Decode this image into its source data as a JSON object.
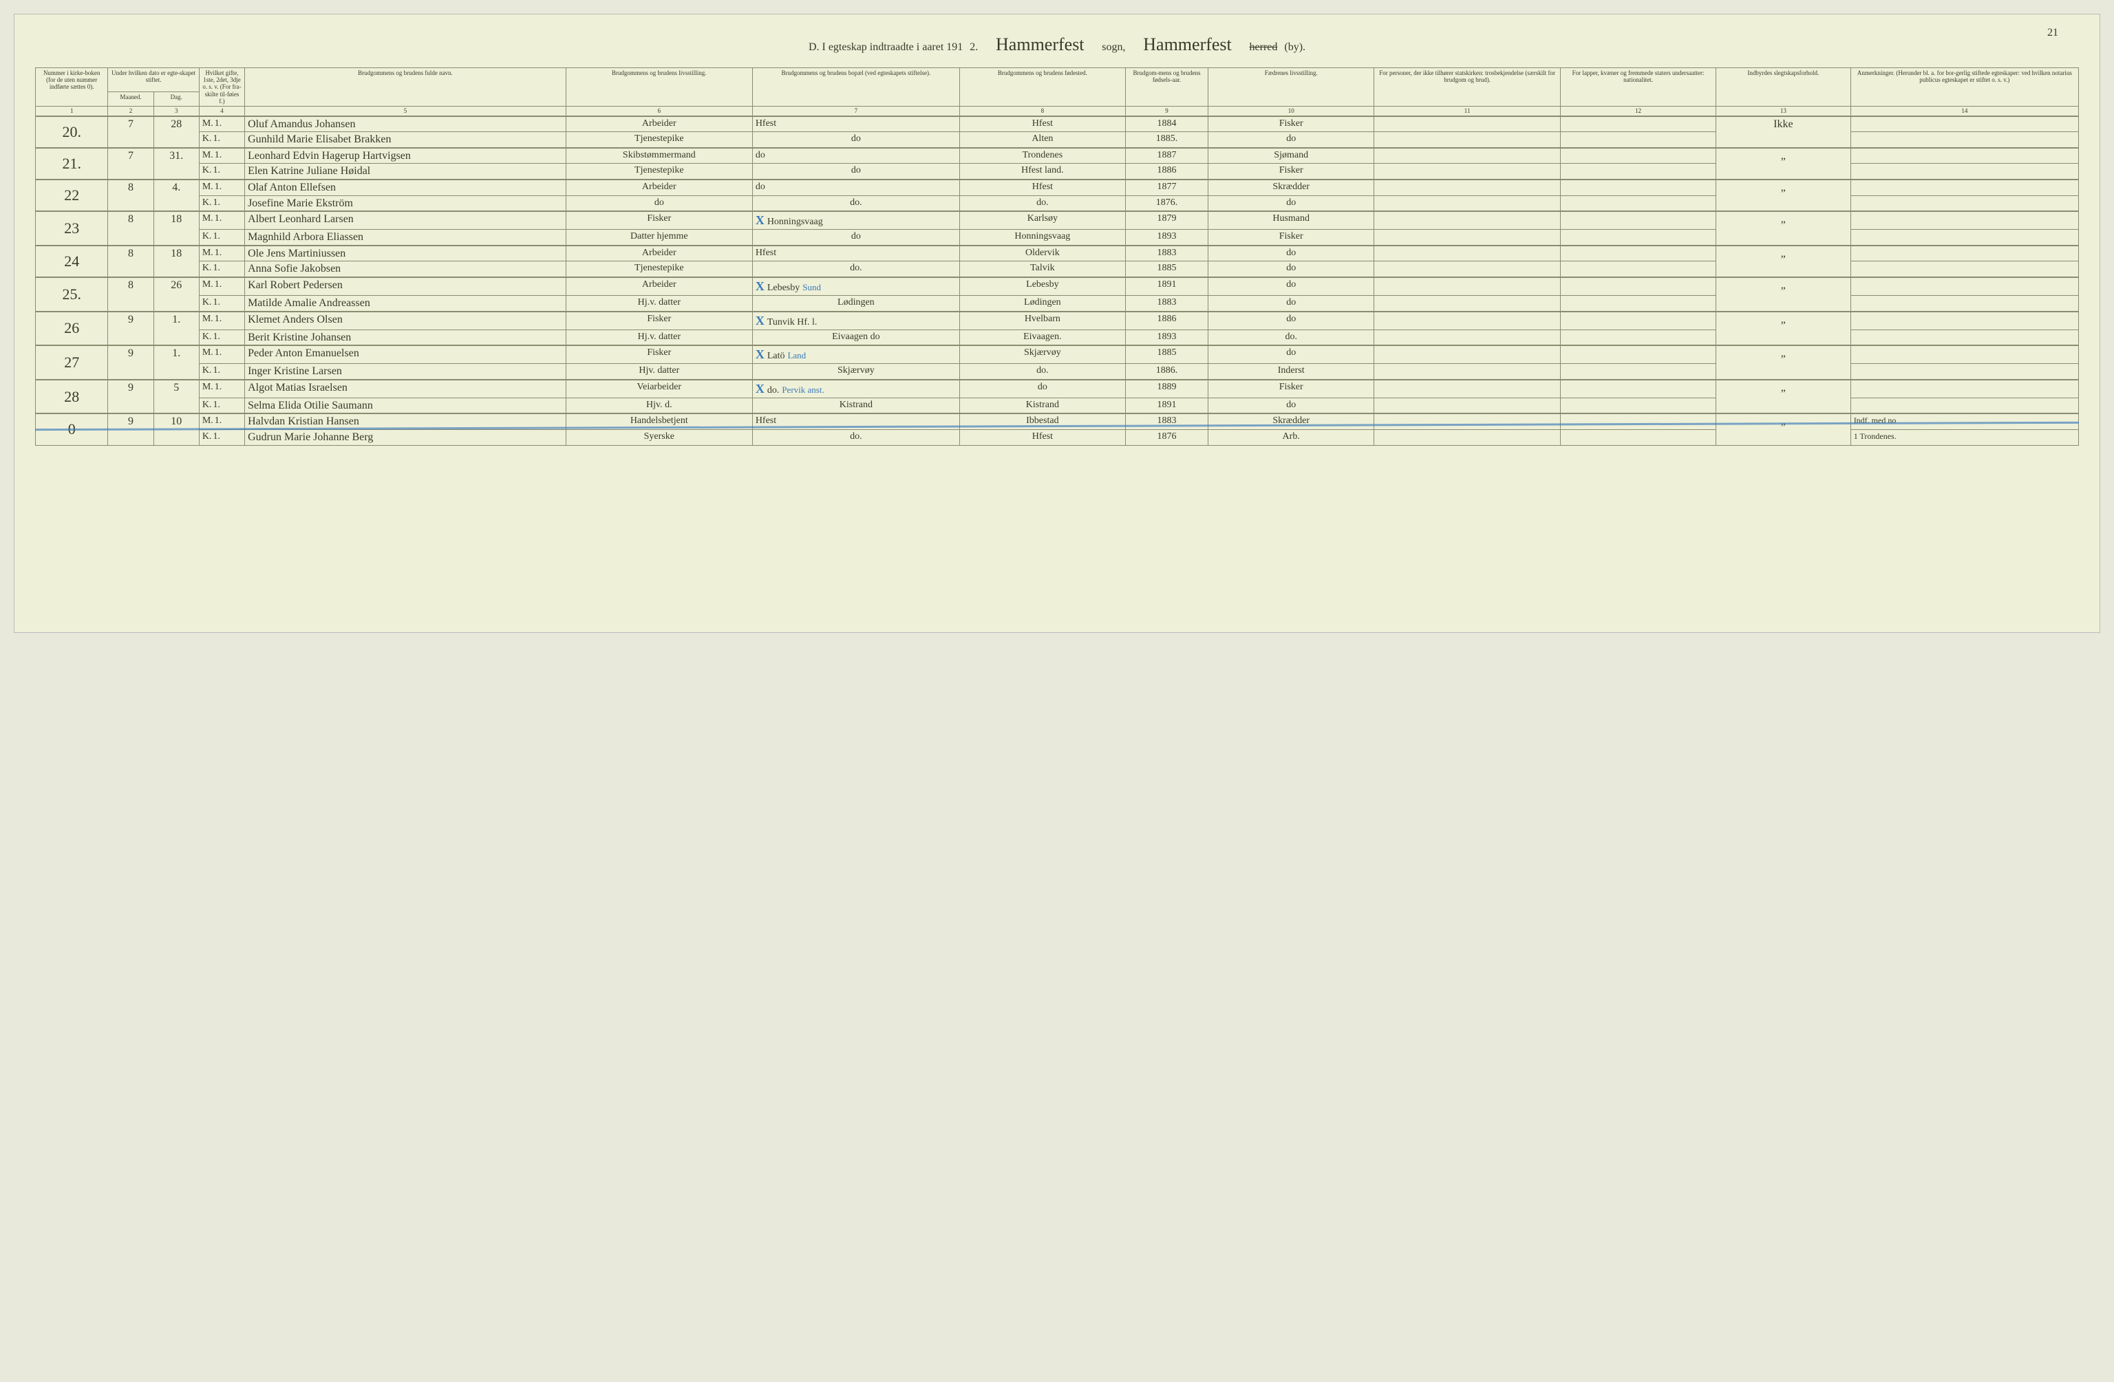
{
  "page_number": "21",
  "colors": {
    "page_bg": "#eef0d8",
    "line_color": "#8a8c70",
    "pen_color": "#3b3a2a",
    "blue_pen": "#3a7ab8"
  },
  "title": {
    "prefix": "D.  I egteskap indtraadte i aaret 191",
    "year_digit": "2.",
    "sogn1": "Hammerfest",
    "mid1": "sogn,",
    "sogn2": "Hammerfest",
    "herred_strike": "herred",
    "by": "(by)."
  },
  "headers": {
    "h1": "Nummer i kirke-boken (for de uten nummer indførte sættes 0).",
    "h2": "Under hvilken dato er egte-skapet stiftet.",
    "h2a": "Maaned.",
    "h2b": "Dag.",
    "h3": "Hvilket gifte, 1ste, 2det, 3dje o. s. v. (For fra-skilte til-føies f.)",
    "h4": "Brudgommens og brudens fulde navn.",
    "h5": "Brudgommens og brudens livsstilling.",
    "h6": "Brudgommens og brudens bopæl (ved egteskapets stiftelse).",
    "h7": "Brudgommens og brudens fødested.",
    "h8": "Brudgom-mens og brudens fødsels-aar.",
    "h9": "Fædrenes livsstilling.",
    "h10": "For personer, der ikke tilhører statskirken: trosbekjendelse (særskilt for brudgom og brud).",
    "h11": "For lapper, kvæner og fremmede staters undersaatter: nationalitet.",
    "h12": "Indbyrdes slegtskapsforhold.",
    "h13": "Anmerkninger. (Herunder bl. a. for bor-gerlig stiftede egteskaper: ved hvilken notarius publicus egteskapet er stiftet o. s. v.)"
  },
  "colnums": [
    "1",
    "2",
    "3",
    "4",
    "5",
    "6",
    "7",
    "8",
    "9",
    "10",
    "11",
    "12",
    "13",
    "14"
  ],
  "sex_labels": {
    "m": "M.",
    "k": "K."
  },
  "entries": [
    {
      "num": "20.",
      "month": "7",
      "day": "28",
      "groom": {
        "gifte": "1.",
        "name": "Oluf Amandus Johansen",
        "occ": "Arbeider",
        "res": "Hfest",
        "born": "Hfest",
        "year": "1884",
        "father": "Fisker"
      },
      "bride": {
        "gifte": "1.",
        "name": "Gunhild Marie Elisabet Brakken",
        "occ": "Tjenestepike",
        "res": "do",
        "born": "Alten",
        "year": "1885.",
        "father": "do"
      },
      "col13": "Ikke"
    },
    {
      "num": "21.",
      "month": "7",
      "day": "31.",
      "groom": {
        "gifte": "1.",
        "name": "Leonhard Edvin Hagerup Hartvigsen",
        "occ": "Skibstømmermand",
        "res": "do",
        "born": "Trondenes",
        "year": "1887",
        "father": "Sjømand"
      },
      "bride": {
        "gifte": "1.",
        "name": "Elen Katrine Juliane Høidal",
        "occ": "Tjenestepike",
        "res": "do",
        "born": "Hfest land.",
        "year": "1886",
        "father": "Fisker"
      },
      "col13": "„"
    },
    {
      "num": "22",
      "month": "8",
      "day": "4.",
      "groom": {
        "gifte": "1.",
        "name": "Olaf Anton Ellefsen",
        "occ": "Arbeider",
        "res": "do",
        "born": "Hfest",
        "year": "1877",
        "father": "Skrædder"
      },
      "bride": {
        "gifte": "1.",
        "name": "Josefine Marie Ekström",
        "occ": "do",
        "res": "do.",
        "born": "do.",
        "year": "1876.",
        "father": "do"
      },
      "col13": "„"
    },
    {
      "num": "23",
      "month": "8",
      "day": "18",
      "groom": {
        "gifte": "1.",
        "name": "Albert Leonhard Larsen",
        "occ": "Fisker",
        "res_x": true,
        "res": "Honningsvaag",
        "res_note": "",
        "born": "Karlsøy",
        "year": "1879",
        "father": "Husmand"
      },
      "bride": {
        "gifte": "1.",
        "name": "Magnhild Arbora Eliassen",
        "occ": "Datter hjemme",
        "res": "do",
        "born": "Honningsvaag",
        "year": "1893",
        "father": "Fisker"
      },
      "col13": "„"
    },
    {
      "num": "24",
      "month": "8",
      "day": "18",
      "groom": {
        "gifte": "1.",
        "name": "Ole Jens Martiniussen",
        "occ": "Arbeider",
        "res": "Hfest",
        "born": "Oldervik",
        "year": "1883",
        "father": "do"
      },
      "bride": {
        "gifte": "1.",
        "name": "Anna Sofie Jakobsen",
        "occ": "Tjenestepike",
        "res": "do.",
        "born": "Talvik",
        "year": "1885",
        "father": "do"
      },
      "col13": "„"
    },
    {
      "num": "25.",
      "month": "8",
      "day": "26",
      "groom": {
        "gifte": "1.",
        "name": "Karl Robert Pedersen",
        "occ": "Arbeider",
        "res_x": true,
        "res": "Lebesby",
        "res_note": "Sund",
        "born": "Lebesby",
        "year": "1891",
        "father": "do"
      },
      "bride": {
        "gifte": "1.",
        "name": "Matilde Amalie Andreassen",
        "occ": "Hj.v. datter",
        "res": "Lødingen",
        "born": "Lødingen",
        "year": "1883",
        "father": "do"
      },
      "col13": "„"
    },
    {
      "num": "26",
      "month": "9",
      "day": "1.",
      "groom": {
        "gifte": "1.",
        "name": "Klemet Anders Olsen",
        "occ": "Fisker",
        "res_x": true,
        "res": "Tunvik Hf. l.",
        "res_note": "",
        "born": "Hvelbarn",
        "year": "1886",
        "father": "do"
      },
      "bride": {
        "gifte": "1.",
        "name": "Berit Kristine Johansen",
        "occ": "Hj.v. datter",
        "res": "Eivaagen do",
        "born": "Eivaagen.",
        "year": "1893",
        "father": "do."
      },
      "col13": "„"
    },
    {
      "num": "27",
      "month": "9",
      "day": "1.",
      "groom": {
        "gifte": "1.",
        "name": "Peder Anton Emanuelsen",
        "occ": "Fisker",
        "res_x": true,
        "res": "Latö",
        "res_note": "Land",
        "born": "Skjærvøy",
        "year": "1885",
        "father": "do"
      },
      "bride": {
        "gifte": "1.",
        "name": "Inger Kristine Larsen",
        "occ": "Hjv. datter",
        "res": "Skjærvøy",
        "born": "do.",
        "year": "1886.",
        "father": "Inderst"
      },
      "col13": "„"
    },
    {
      "num": "28",
      "month": "9",
      "day": "5",
      "groom": {
        "gifte": "1.",
        "name": "Algot Matias Israelsen",
        "occ": "Veiarbeider",
        "res_x": true,
        "res": "do.",
        "res_note": "Pervik anst.",
        "born": "do",
        "year": "1889",
        "father": "Fisker"
      },
      "bride": {
        "gifte": "1.",
        "name": "Selma Elida Otilie Saumann",
        "occ": "Hjv. d.",
        "res": "Kistrand",
        "born": "Kistrand",
        "year": "1891",
        "father": "do"
      },
      "col13": "„"
    },
    {
      "num": "0",
      "month": "9",
      "day": "10",
      "strike": true,
      "groom": {
        "gifte": "1.",
        "name": "Halvdan Kristian Hansen",
        "occ": "Handelsbetjent",
        "res": "Hfest",
        "born": "Ibbestad",
        "year": "1883",
        "father": "Skrædder"
      },
      "bride": {
        "gifte": "1.",
        "name": "Gudrun Marie Johanne Berg",
        "occ": "Syerske",
        "res": "do.",
        "born": "Hfest",
        "year": "1876",
        "father": "Arb."
      },
      "col13": "„",
      "remarks_g": "Indf. med no",
      "remarks_b": "1 Trondenes."
    }
  ]
}
